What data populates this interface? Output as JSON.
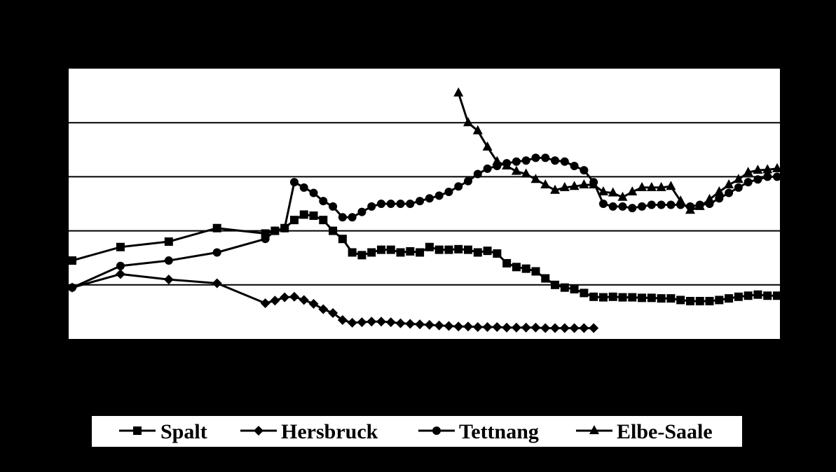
{
  "chart_data": {
    "type": "line",
    "title": "",
    "xlabel": "",
    "ylabel": "",
    "xlim": [
      0,
      73
    ],
    "ylim": [
      0,
      5
    ],
    "grid": "horizontal",
    "legend_position": "bottom",
    "line_color": "#000000",
    "series": [
      {
        "name": "Spalt",
        "marker": "square",
        "points": [
          [
            0,
            1.45
          ],
          [
            5,
            1.7
          ],
          [
            10,
            1.8
          ],
          [
            15,
            2.05
          ],
          [
            20,
            1.95
          ],
          [
            21,
            2.0
          ],
          [
            22,
            2.05
          ],
          [
            23,
            2.2
          ],
          [
            24,
            2.3
          ],
          [
            25,
            2.28
          ],
          [
            26,
            2.2
          ],
          [
            27,
            2.0
          ],
          [
            28,
            1.85
          ],
          [
            29,
            1.6
          ],
          [
            30,
            1.55
          ],
          [
            31,
            1.6
          ],
          [
            32,
            1.65
          ],
          [
            33,
            1.65
          ],
          [
            34,
            1.6
          ],
          [
            35,
            1.62
          ],
          [
            36,
            1.6
          ],
          [
            37,
            1.7
          ],
          [
            38,
            1.65
          ],
          [
            39,
            1.65
          ],
          [
            40,
            1.66
          ],
          [
            41,
            1.65
          ],
          [
            42,
            1.6
          ],
          [
            43,
            1.63
          ],
          [
            44,
            1.58
          ],
          [
            45,
            1.4
          ],
          [
            46,
            1.33
          ],
          [
            47,
            1.3
          ],
          [
            48,
            1.25
          ],
          [
            49,
            1.12
          ],
          [
            50,
            1.0
          ],
          [
            51,
            0.95
          ],
          [
            52,
            0.92
          ],
          [
            53,
            0.85
          ],
          [
            54,
            0.78
          ],
          [
            55,
            0.77
          ],
          [
            56,
            0.78
          ],
          [
            57,
            0.77
          ],
          [
            58,
            0.77
          ],
          [
            59,
            0.76
          ],
          [
            60,
            0.76
          ],
          [
            61,
            0.75
          ],
          [
            62,
            0.75
          ],
          [
            63,
            0.72
          ],
          [
            64,
            0.7
          ],
          [
            65,
            0.7
          ],
          [
            66,
            0.7
          ],
          [
            67,
            0.72
          ],
          [
            68,
            0.75
          ],
          [
            69,
            0.78
          ],
          [
            70,
            0.8
          ],
          [
            71,
            0.82
          ],
          [
            72,
            0.8
          ],
          [
            73,
            0.8
          ]
        ]
      },
      {
        "name": "Hersbruck",
        "marker": "diamond",
        "points": [
          [
            0,
            0.95
          ],
          [
            5,
            1.2
          ],
          [
            10,
            1.1
          ],
          [
            15,
            1.03
          ],
          [
            20,
            0.66
          ],
          [
            21,
            0.71
          ],
          [
            22,
            0.77
          ],
          [
            23,
            0.78
          ],
          [
            24,
            0.72
          ],
          [
            25,
            0.65
          ],
          [
            26,
            0.55
          ],
          [
            27,
            0.48
          ],
          [
            28,
            0.35
          ],
          [
            29,
            0.3
          ],
          [
            30,
            0.31
          ],
          [
            31,
            0.32
          ],
          [
            32,
            0.32
          ],
          [
            33,
            0.31
          ],
          [
            34,
            0.29
          ],
          [
            35,
            0.28
          ],
          [
            36,
            0.27
          ],
          [
            37,
            0.26
          ],
          [
            38,
            0.25
          ],
          [
            39,
            0.24
          ],
          [
            40,
            0.23
          ],
          [
            41,
            0.23
          ],
          [
            42,
            0.22
          ],
          [
            43,
            0.22
          ],
          [
            44,
            0.22
          ],
          [
            45,
            0.21
          ],
          [
            46,
            0.21
          ],
          [
            47,
            0.21
          ],
          [
            48,
            0.21
          ],
          [
            49,
            0.2
          ],
          [
            50,
            0.2
          ],
          [
            51,
            0.2
          ],
          [
            52,
            0.2
          ],
          [
            53,
            0.2
          ],
          [
            54,
            0.2
          ]
        ]
      },
      {
        "name": "Tettnang",
        "marker": "circle",
        "points": [
          [
            0,
            0.95
          ],
          [
            5,
            1.35
          ],
          [
            10,
            1.45
          ],
          [
            15,
            1.6
          ],
          [
            20,
            1.85
          ],
          [
            21,
            2.0
          ],
          [
            22,
            2.05
          ],
          [
            23,
            2.9
          ],
          [
            24,
            2.8
          ],
          [
            25,
            2.7
          ],
          [
            26,
            2.55
          ],
          [
            27,
            2.45
          ],
          [
            28,
            2.25
          ],
          [
            29,
            2.25
          ],
          [
            30,
            2.35
          ],
          [
            31,
            2.45
          ],
          [
            32,
            2.5
          ],
          [
            33,
            2.5
          ],
          [
            34,
            2.5
          ],
          [
            35,
            2.5
          ],
          [
            36,
            2.55
          ],
          [
            37,
            2.6
          ],
          [
            38,
            2.65
          ],
          [
            39,
            2.72
          ],
          [
            40,
            2.82
          ],
          [
            41,
            2.92
          ],
          [
            42,
            3.05
          ],
          [
            43,
            3.15
          ],
          [
            44,
            3.2
          ],
          [
            45,
            3.25
          ],
          [
            46,
            3.28
          ],
          [
            47,
            3.3
          ],
          [
            48,
            3.35
          ],
          [
            49,
            3.35
          ],
          [
            50,
            3.3
          ],
          [
            51,
            3.28
          ],
          [
            52,
            3.2
          ],
          [
            53,
            3.12
          ],
          [
            54,
            2.9
          ],
          [
            55,
            2.5
          ],
          [
            56,
            2.45
          ],
          [
            57,
            2.45
          ],
          [
            58,
            2.42
          ],
          [
            59,
            2.45
          ],
          [
            60,
            2.48
          ],
          [
            61,
            2.48
          ],
          [
            62,
            2.48
          ],
          [
            63,
            2.48
          ],
          [
            64,
            2.45
          ],
          [
            65,
            2.48
          ],
          [
            66,
            2.5
          ],
          [
            67,
            2.6
          ],
          [
            68,
            2.7
          ],
          [
            69,
            2.8
          ],
          [
            70,
            2.9
          ],
          [
            71,
            2.95
          ],
          [
            72,
            3.0
          ],
          [
            73,
            3.0
          ]
        ]
      },
      {
        "name": "Elbe-Saale",
        "marker": "triangle",
        "points": [
          [
            40,
            4.55
          ],
          [
            41,
            4.0
          ],
          [
            42,
            3.85
          ],
          [
            43,
            3.55
          ],
          [
            44,
            3.28
          ],
          [
            45,
            3.2
          ],
          [
            46,
            3.1
          ],
          [
            47,
            3.05
          ],
          [
            48,
            2.95
          ],
          [
            49,
            2.85
          ],
          [
            50,
            2.75
          ],
          [
            51,
            2.8
          ],
          [
            52,
            2.82
          ],
          [
            53,
            2.85
          ],
          [
            54,
            2.85
          ],
          [
            55,
            2.72
          ],
          [
            56,
            2.7
          ],
          [
            57,
            2.62
          ],
          [
            58,
            2.72
          ],
          [
            59,
            2.8
          ],
          [
            60,
            2.8
          ],
          [
            61,
            2.8
          ],
          [
            62,
            2.82
          ],
          [
            63,
            2.55
          ],
          [
            64,
            2.38
          ],
          [
            65,
            2.45
          ],
          [
            66,
            2.58
          ],
          [
            67,
            2.72
          ],
          [
            68,
            2.85
          ],
          [
            69,
            2.95
          ],
          [
            70,
            3.08
          ],
          [
            71,
            3.12
          ],
          [
            72,
            3.13
          ],
          [
            73,
            3.15
          ]
        ]
      }
    ]
  }
}
